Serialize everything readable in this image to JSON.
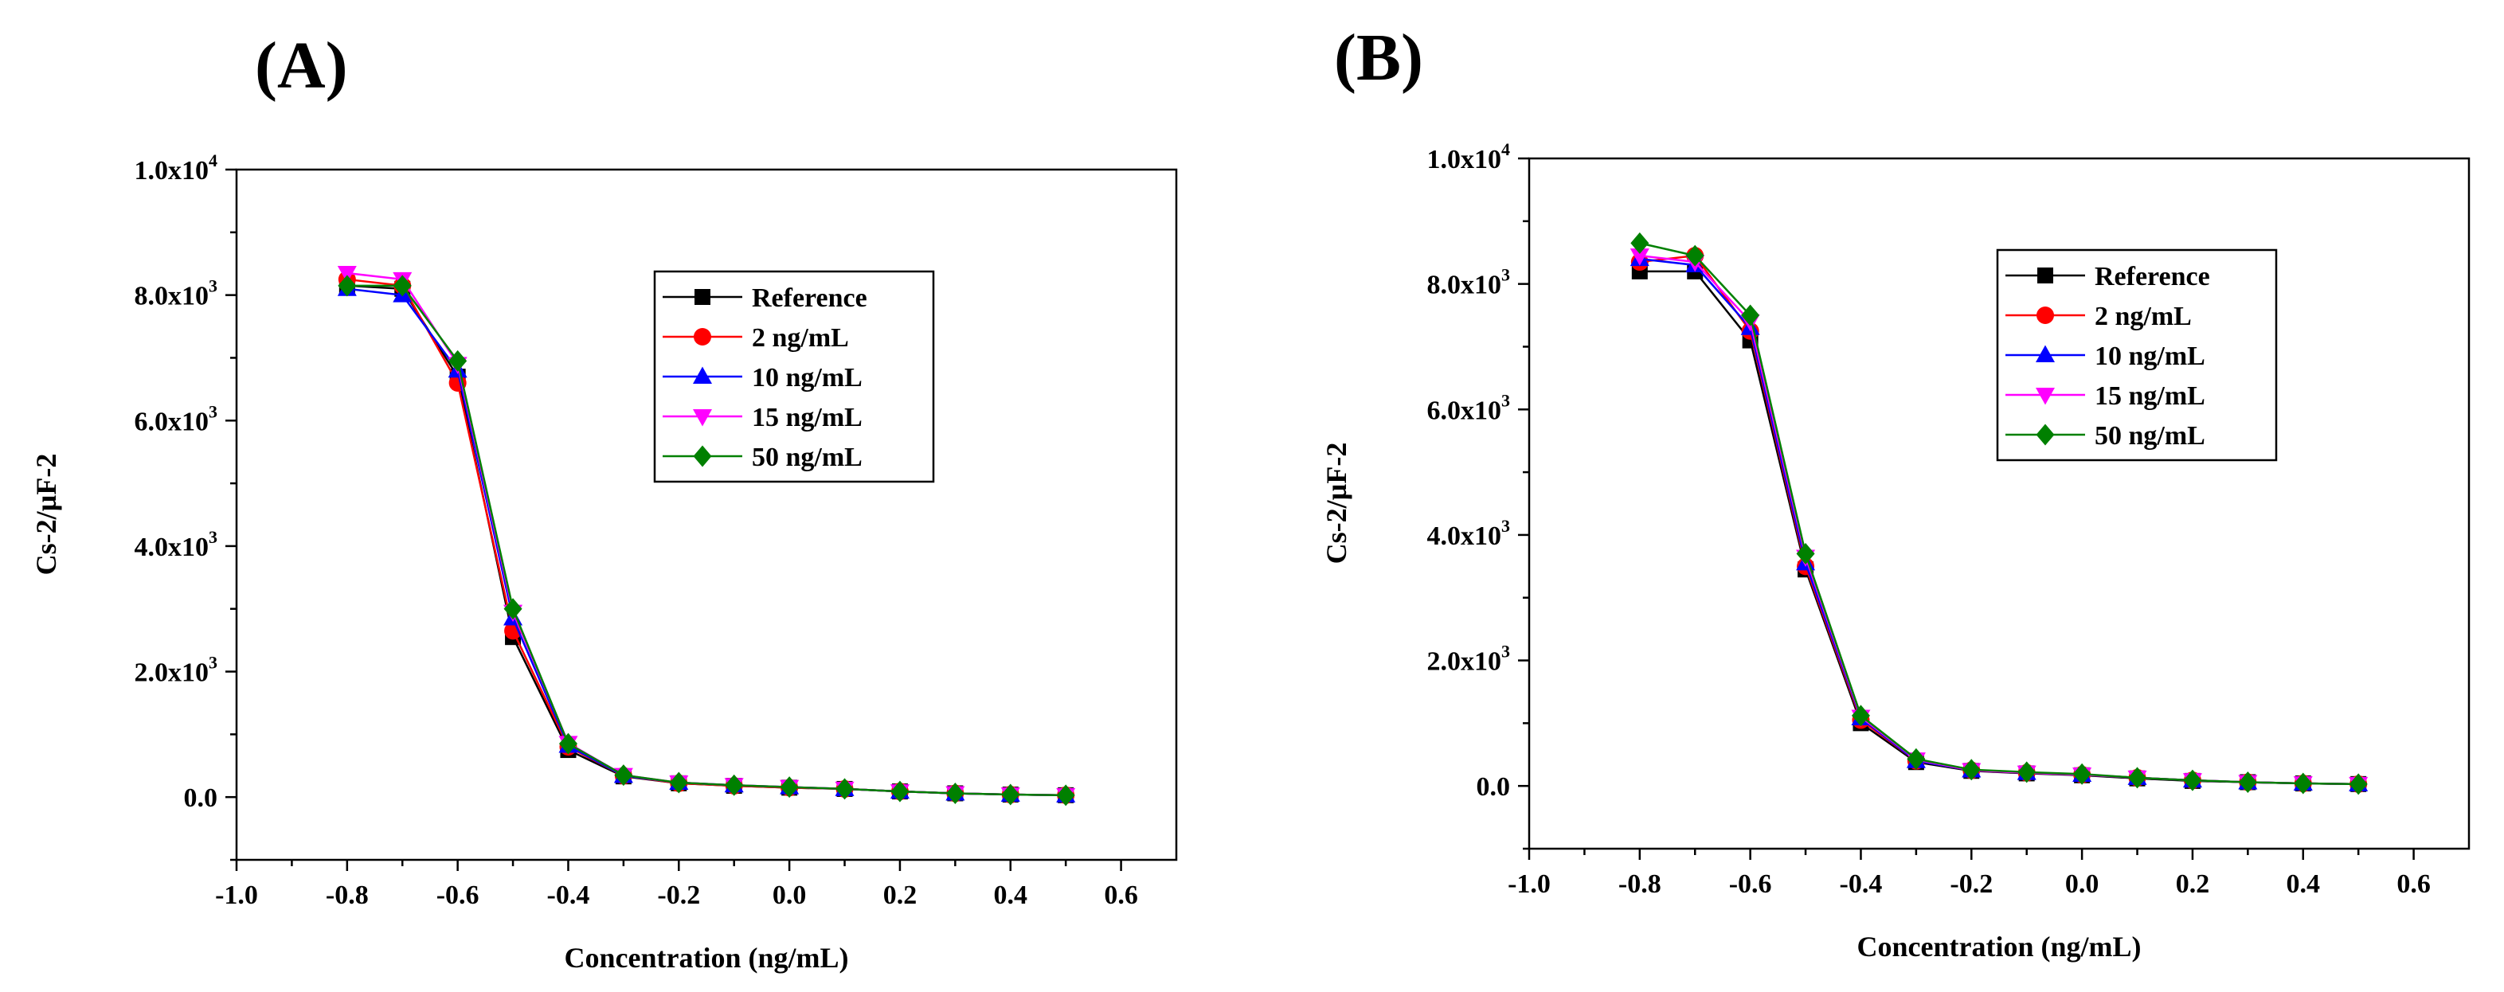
{
  "figure": {
    "panels": [
      {
        "label": "(A)"
      },
      {
        "label": "(B)"
      }
    ]
  },
  "colors": {
    "Reference": "#000000",
    "2 ng/mL": "#ff0000",
    "10 ng/mL": "#0000ff",
    "15 ng/mL": "#ff00ff",
    "50 ng/mL": "#008000"
  },
  "markers": {
    "Reference": "square",
    "2 ng/mL": "circle",
    "10 ng/mL": "triangle-up",
    "15 ng/mL": "triangle-down",
    "50 ng/mL": "diamond"
  },
  "chart_data": [
    {
      "type": "line",
      "panel_label": "(A)",
      "xlabel": "Concentration (ng/mL)",
      "ylabel": "Cs-2/µF-2",
      "xlim": [
        -1.0,
        0.7
      ],
      "ylim": [
        -1000,
        10000
      ],
      "xticks": [
        -1.0,
        -0.8,
        -0.6,
        -0.4,
        -0.2,
        0.0,
        0.2,
        0.4,
        0.6
      ],
      "xtick_labels": [
        "-1.0",
        "-0.8",
        "-0.6",
        "-0.4",
        "-0.2",
        "0.0",
        "0.2",
        "0.4",
        "0.6"
      ],
      "yticks": [
        0,
        2000,
        4000,
        6000,
        8000,
        10000
      ],
      "ytick_labels": [
        [
          "0.0",
          ""
        ],
        [
          "2.0x10",
          "3"
        ],
        [
          "4.0x10",
          "3"
        ],
        [
          "6.0x10",
          "3"
        ],
        [
          "8.0x10",
          "3"
        ],
        [
          "1.0x10",
          "4"
        ]
      ],
      "legend_position": "upper-right",
      "x": [
        -0.8,
        -0.7,
        -0.6,
        -0.5,
        -0.4,
        -0.3,
        -0.2,
        -0.1,
        0.0,
        0.1,
        0.2,
        0.3,
        0.4,
        0.5
      ],
      "series": [
        {
          "name": "Reference",
          "values": [
            8150,
            8100,
            6700,
            2550,
            750,
            330,
            220,
            180,
            150,
            130,
            90,
            60,
            40,
            30
          ]
        },
        {
          "name": "2 ng/mL",
          "values": [
            8250,
            8150,
            6600,
            2650,
            800,
            340,
            220,
            180,
            150,
            130,
            90,
            60,
            40,
            30
          ]
        },
        {
          "name": "10 ng/mL",
          "values": [
            8100,
            8000,
            6800,
            2850,
            820,
            340,
            230,
            190,
            160,
            130,
            90,
            60,
            40,
            30
          ]
        },
        {
          "name": "15 ng/mL",
          "values": [
            8350,
            8250,
            6900,
            2950,
            860,
            350,
            230,
            190,
            160,
            130,
            90,
            60,
            40,
            30
          ]
        },
        {
          "name": "50 ng/mL",
          "values": [
            8150,
            8150,
            6950,
            3000,
            850,
            350,
            230,
            190,
            160,
            130,
            90,
            60,
            40,
            30
          ]
        }
      ]
    },
    {
      "type": "line",
      "panel_label": "(B)",
      "xlabel": "Concentration (ng/mL)",
      "ylabel": "Cs-2/µF-2",
      "xlim": [
        -1.0,
        0.7
      ],
      "ylim": [
        -1000,
        10000
      ],
      "xticks": [
        -1.0,
        -0.8,
        -0.6,
        -0.4,
        -0.2,
        0.0,
        0.2,
        0.4,
        0.6
      ],
      "xtick_labels": [
        "-1.0",
        "-0.8",
        "-0.6",
        "-0.4",
        "-0.2",
        "0.0",
        "0.2",
        "0.4",
        "0.6"
      ],
      "yticks": [
        0,
        2000,
        4000,
        6000,
        8000,
        10000
      ],
      "ytick_labels": [
        [
          "0.0",
          ""
        ],
        [
          "2.0x10",
          "3"
        ],
        [
          "4.0x10",
          "3"
        ],
        [
          "6.0x10",
          "3"
        ],
        [
          "8.0x10",
          "3"
        ],
        [
          "1.0x10",
          "4"
        ]
      ],
      "legend_position": "upper-right",
      "x": [
        -0.8,
        -0.7,
        -0.6,
        -0.5,
        -0.4,
        -0.3,
        -0.2,
        -0.1,
        0.0,
        0.1,
        0.2,
        0.3,
        0.4,
        0.5
      ],
      "series": [
        {
          "name": "Reference",
          "values": [
            8200,
            8200,
            7100,
            3450,
            1000,
            380,
            240,
            200,
            170,
            120,
            80,
            60,
            40,
            30
          ]
        },
        {
          "name": "2 ng/mL",
          "values": [
            8350,
            8450,
            7250,
            3500,
            1050,
            400,
            250,
            210,
            180,
            130,
            90,
            60,
            40,
            30
          ]
        },
        {
          "name": "10 ng/mL",
          "values": [
            8400,
            8300,
            7300,
            3550,
            1080,
            400,
            250,
            210,
            180,
            130,
            90,
            60,
            40,
            30
          ]
        },
        {
          "name": "15 ng/mL",
          "values": [
            8450,
            8350,
            7400,
            3650,
            1100,
            420,
            250,
            210,
            180,
            130,
            90,
            60,
            40,
            30
          ]
        },
        {
          "name": "50 ng/mL",
          "values": [
            8650,
            8450,
            7500,
            3700,
            1120,
            430,
            260,
            220,
            190,
            130,
            90,
            60,
            40,
            30
          ]
        }
      ]
    }
  ]
}
